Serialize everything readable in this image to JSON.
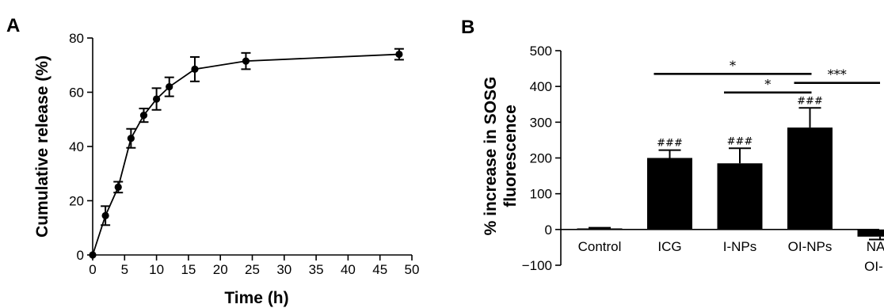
{
  "panel_a_label": "A",
  "panel_b_label": "B",
  "chart_data": [
    {
      "type": "line",
      "xlabel": "Time (h)",
      "ylabel": "Cumulative release (%)",
      "xlim": [
        0,
        50
      ],
      "ylim": [
        0,
        80
      ],
      "xticks": [
        "0",
        "5",
        "10",
        "15",
        "20",
        "25",
        "30",
        "35",
        "40",
        "45",
        "50"
      ],
      "yticks": [
        "0",
        "20",
        "40",
        "60",
        "80"
      ],
      "series": [
        {
          "x": [
            0,
            2,
            4,
            6,
            8,
            10,
            12,
            16,
            24,
            48
          ],
          "y": [
            0,
            14.5,
            25,
            43,
            51.5,
            57.5,
            62,
            68.5,
            71.5,
            74
          ],
          "err": [
            0,
            3.5,
            2,
            3.5,
            2.5,
            4,
            3.5,
            4.5,
            3,
            2
          ]
        }
      ],
      "grid": false
    },
    {
      "type": "bar",
      "ylabel_line1": "% increase in SOSG",
      "ylabel_line2": "fluorescence",
      "ylim": [
        -100,
        500
      ],
      "yticks": [
        "−100",
        "0",
        "100",
        "200",
        "300",
        "400",
        "500"
      ],
      "categories": [
        "Control",
        "ICG",
        "I-NPs",
        "OI-NPs",
        "NAC + OI-NPs"
      ],
      "values": [
        3,
        200,
        185,
        285,
        -20
      ],
      "err": [
        2,
        22,
        42,
        55,
        8
      ],
      "annotations": [
        "",
        "###",
        "###",
        "###",
        ""
      ],
      "significance": [
        {
          "from": 1,
          "to": 3,
          "y": 435,
          "label": "*"
        },
        {
          "from": 2,
          "to": 3,
          "y": 383,
          "label": "*"
        },
        {
          "from": 3,
          "to": 4,
          "y": 410,
          "label": "***"
        }
      ],
      "bar_color": "#000000",
      "grid": false
    }
  ]
}
